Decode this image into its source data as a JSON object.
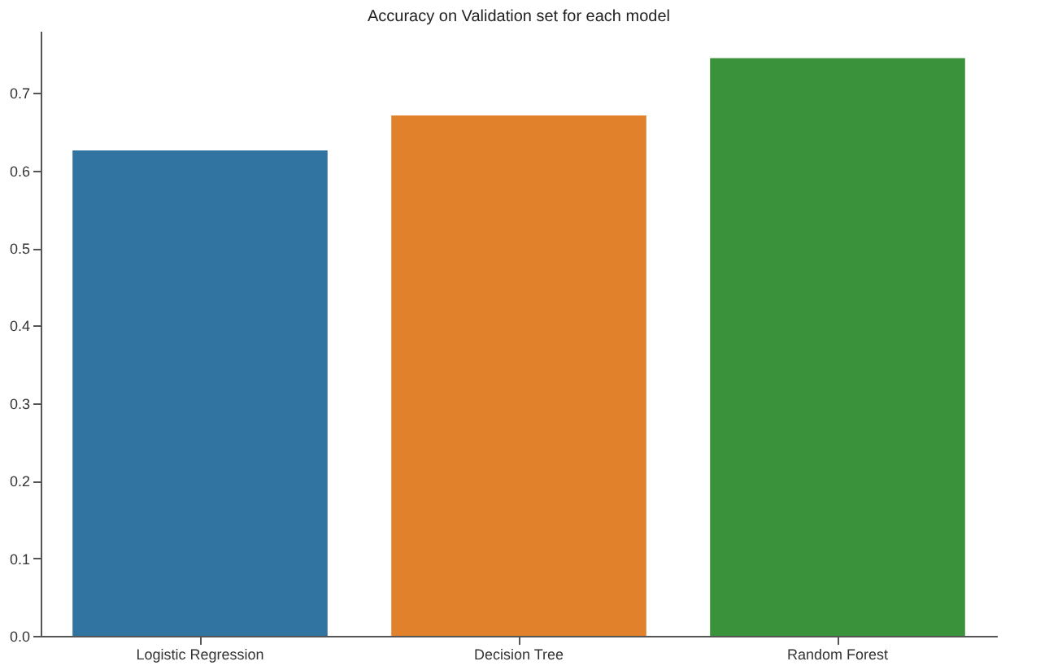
{
  "chart_data": {
    "type": "bar",
    "title": "Accuracy on Validation set for each model",
    "categories": [
      "Logistic Regression",
      "Decision Tree",
      "Random Forest"
    ],
    "values": [
      0.626,
      0.671,
      0.745
    ],
    "colors": [
      "#3274a1",
      "#e1812c",
      "#3a923a"
    ],
    "ylim": [
      0,
      0.78
    ],
    "yticks": [
      {
        "value": 0,
        "label": "0.0"
      },
      0.1,
      0.2,
      0.3,
      0.4,
      0.5,
      0.6,
      0.7
    ],
    "grid": false,
    "legend": false
  }
}
